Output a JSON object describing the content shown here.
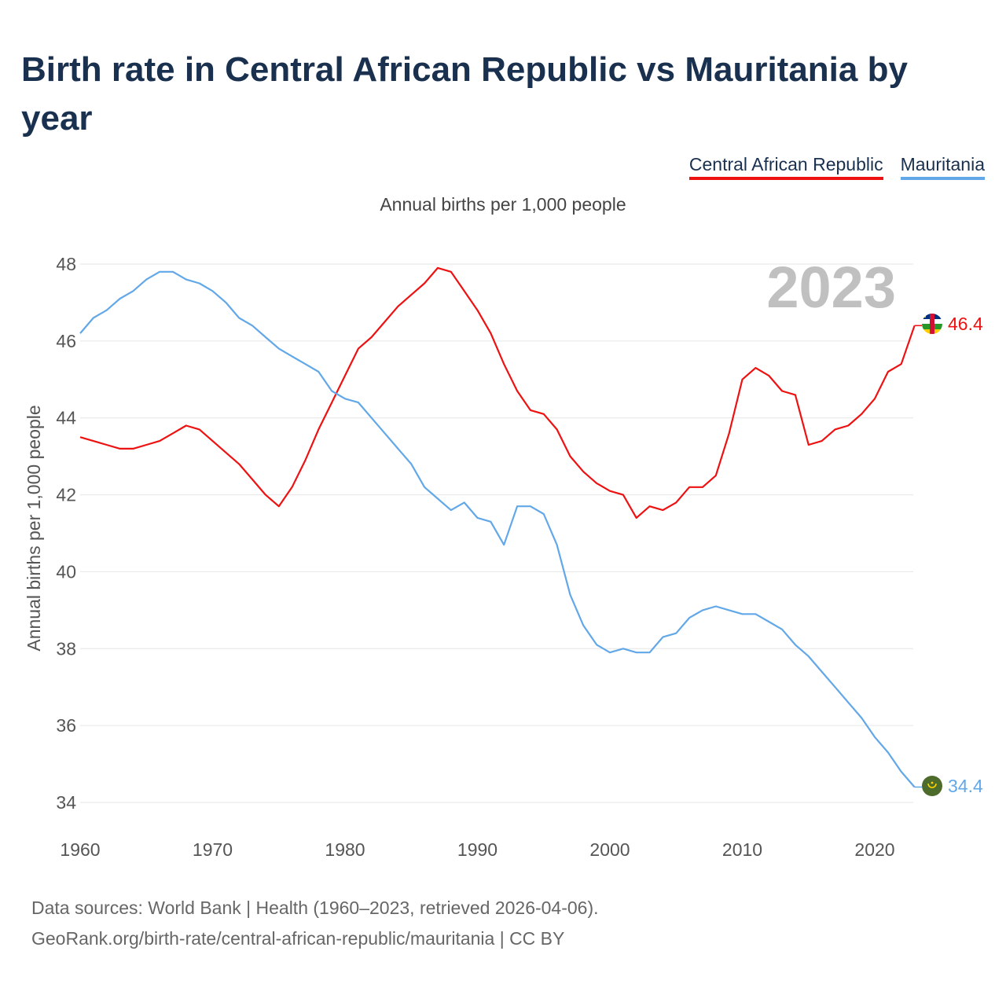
{
  "title": "Birth rate in Central African Republic vs Mauritania by year",
  "legend": {
    "car": "Central African Republic",
    "mrt": "Mauritania"
  },
  "subtitle": "Annual births per 1,000 people",
  "year_label": "2023",
  "footer": {
    "line1": "Data sources: World Bank | Health (1960–2023, retrieved 2026-04-06).",
    "line2": "GeoRank.org/birth-rate/central-african-republic/mauritania | CC BY"
  },
  "colors": {
    "car": "#ee1111",
    "mrt": "#62a8e8",
    "grid": "#e6e6e6",
    "tick": "#555555"
  },
  "chart_data": {
    "type": "line",
    "title": "Birth rate in Central African Republic vs Mauritania by year",
    "ylabel": "Annual births per 1,000 people",
    "xlabel": "",
    "xlim": [
      1960,
      2023
    ],
    "ylim": [
      34,
      48
    ],
    "xticks": [
      1960,
      1970,
      1980,
      1990,
      2000,
      2010,
      2020
    ],
    "yticks": [
      34,
      36,
      38,
      40,
      42,
      44,
      46,
      48
    ],
    "x": [
      1960,
      1961,
      1962,
      1963,
      1964,
      1965,
      1966,
      1967,
      1968,
      1969,
      1970,
      1971,
      1972,
      1973,
      1974,
      1975,
      1976,
      1977,
      1978,
      1979,
      1980,
      1981,
      1982,
      1983,
      1984,
      1985,
      1986,
      1987,
      1988,
      1989,
      1990,
      1991,
      1992,
      1993,
      1994,
      1995,
      1996,
      1997,
      1998,
      1999,
      2000,
      2001,
      2002,
      2003,
      2004,
      2005,
      2006,
      2007,
      2008,
      2009,
      2010,
      2011,
      2012,
      2013,
      2014,
      2015,
      2016,
      2017,
      2018,
      2019,
      2020,
      2021,
      2022,
      2023
    ],
    "series": [
      {
        "name": "Central African Republic",
        "color": "#ee1111",
        "end_label": "46.4",
        "values": [
          43.5,
          43.4,
          43.3,
          43.2,
          43.2,
          43.3,
          43.4,
          43.6,
          43.8,
          43.7,
          43.4,
          43.1,
          42.8,
          42.4,
          42.0,
          41.7,
          42.2,
          42.9,
          43.7,
          44.4,
          45.1,
          45.8,
          46.1,
          46.5,
          46.9,
          47.2,
          47.5,
          47.9,
          47.8,
          47.3,
          46.8,
          46.2,
          45.4,
          44.7,
          44.2,
          44.1,
          43.7,
          43.0,
          42.6,
          42.3,
          42.1,
          42.0,
          41.4,
          41.7,
          41.6,
          41.8,
          42.2,
          42.2,
          42.5,
          43.6,
          45.0,
          45.3,
          45.1,
          44.7,
          44.6,
          43.3,
          43.4,
          43.7,
          43.8,
          44.1,
          44.5,
          45.2,
          45.4,
          46.4
        ]
      },
      {
        "name": "Mauritania",
        "color": "#62a8e8",
        "end_label": "34.4",
        "values": [
          46.2,
          46.6,
          46.8,
          47.1,
          47.3,
          47.6,
          47.8,
          47.8,
          47.6,
          47.5,
          47.3,
          47.0,
          46.6,
          46.4,
          46.1,
          45.8,
          45.6,
          45.4,
          45.2,
          44.7,
          44.5,
          44.4,
          44.0,
          43.6,
          43.2,
          42.8,
          42.2,
          41.9,
          41.6,
          41.8,
          41.4,
          41.3,
          40.7,
          41.7,
          41.7,
          41.5,
          40.7,
          39.4,
          38.6,
          38.1,
          37.9,
          38.0,
          37.9,
          37.9,
          38.3,
          38.4,
          38.8,
          39.0,
          39.1,
          39.0,
          38.9,
          38.9,
          38.7,
          38.5,
          38.1,
          37.8,
          37.4,
          37.0,
          36.6,
          36.2,
          35.7,
          35.3,
          34.8,
          34.4
        ]
      }
    ]
  }
}
